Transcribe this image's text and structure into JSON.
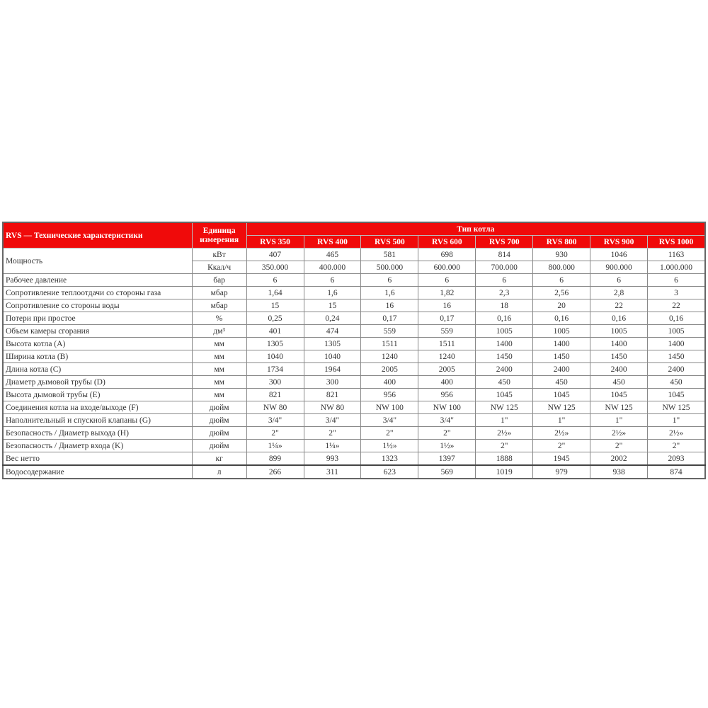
{
  "header": {
    "title": "RVS — Технические характеристики",
    "unit": "Единица измерения",
    "type": "Тип котла",
    "models": [
      "RVS 350",
      "RVS 400",
      "RVS 500",
      "RVS 600",
      "RVS 700",
      "RVS 800",
      "RVS 900",
      "RVS 1000"
    ]
  },
  "colors": {
    "header_bg": "#f00a0a"
  },
  "rows": [
    {
      "label": "Мощность",
      "unit": "кВт",
      "values": [
        "407",
        "465",
        "581",
        "698",
        "814",
        "930",
        "1046",
        "1163"
      ]
    },
    {
      "label": "",
      "unit": "Ккал/ч",
      "values": [
        "350.000",
        "400.000",
        "500.000",
        "600.000",
        "700.000",
        "800.000",
        "900.000",
        "1.000.000"
      ]
    },
    {
      "label": "Рабочее давление",
      "unit": "бар",
      "values": [
        "6",
        "6",
        "6",
        "6",
        "6",
        "6",
        "6",
        "6"
      ]
    },
    {
      "label": "Сопротивление теплоотдачи со стороны газа",
      "unit": "мбар",
      "values": [
        "1,64",
        "1,6",
        "1,6",
        "1,82",
        "2,3",
        "2,56",
        "2,8",
        "3"
      ]
    },
    {
      "label": "Сопротивление со стороны воды",
      "unit": "мбар",
      "values": [
        "15",
        "15",
        "16",
        "16",
        "18",
        "20",
        "22",
        "22"
      ]
    },
    {
      "label": "Потери при простое",
      "unit": "%",
      "values": [
        "0,25",
        "0,24",
        "0,17",
        "0,17",
        "0,16",
        "0,16",
        "0,16",
        "0,16"
      ]
    },
    {
      "label": "Объем камеры сгорания",
      "unit": "дм³",
      "values": [
        "401",
        "474",
        "559",
        "559",
        "1005",
        "1005",
        "1005",
        "1005"
      ]
    },
    {
      "label": "Высота котла (A)",
      "unit": "мм",
      "values": [
        "1305",
        "1305",
        "1511",
        "1511",
        "1400",
        "1400",
        "1400",
        "1400"
      ]
    },
    {
      "label": "Ширина котла (B)",
      "unit": "мм",
      "values": [
        "1040",
        "1040",
        "1240",
        "1240",
        "1450",
        "1450",
        "1450",
        "1450"
      ]
    },
    {
      "label": "Длина котла (C)",
      "unit": "мм",
      "values": [
        "1734",
        "1964",
        "2005",
        "2005",
        "2400",
        "2400",
        "2400",
        "2400"
      ]
    },
    {
      "label": "Диаметр дымовой трубы (D)",
      "unit": "мм",
      "values": [
        "300",
        "300",
        "400",
        "400",
        "450",
        "450",
        "450",
        "450"
      ]
    },
    {
      "label": "Высота дымовой трубы (E)",
      "unit": "мм",
      "values": [
        "821",
        "821",
        "956",
        "956",
        "1045",
        "1045",
        "1045",
        "1045"
      ]
    },
    {
      "label": "Соединения котла на входе/выходе (F)",
      "unit": "дюйм",
      "values": [
        "NW 80",
        "NW 80",
        "NW 100",
        "NW 100",
        "NW 125",
        "NW 125",
        "NW 125",
        "NW 125"
      ]
    },
    {
      "label": "Наполнительный и спускной клапаны (G)",
      "unit": "дюйм",
      "values": [
        "3/4\"",
        "3/4\"",
        "3/4\"",
        "3/4\"",
        "1\"",
        "1\"",
        "1\"",
        "1\""
      ]
    },
    {
      "label": "Безопасность / Диаметр выхода (H)",
      "unit": "дюйм",
      "values": [
        "2\"",
        "2\"",
        "2\"",
        "2\"",
        "2½»",
        "2½»",
        "2½»",
        "2½»"
      ]
    },
    {
      "label": "Безопасность / Диаметр входа (K)",
      "unit": "дюйм",
      "values": [
        "1¼»",
        "1¼»",
        "1½»",
        "1½»",
        "2\"",
        "2\"",
        "2\"",
        "2\""
      ]
    },
    {
      "label": "Вес нетто",
      "unit": "кг",
      "values": [
        "899",
        "993",
        "1323",
        "1397",
        "1888",
        "1945",
        "2002",
        "2093"
      ]
    },
    {
      "label": "Водосодержание",
      "unit": "л",
      "values": [
        "266",
        "311",
        "623",
        "569",
        "1019",
        "979",
        "938",
        "874"
      ]
    }
  ]
}
